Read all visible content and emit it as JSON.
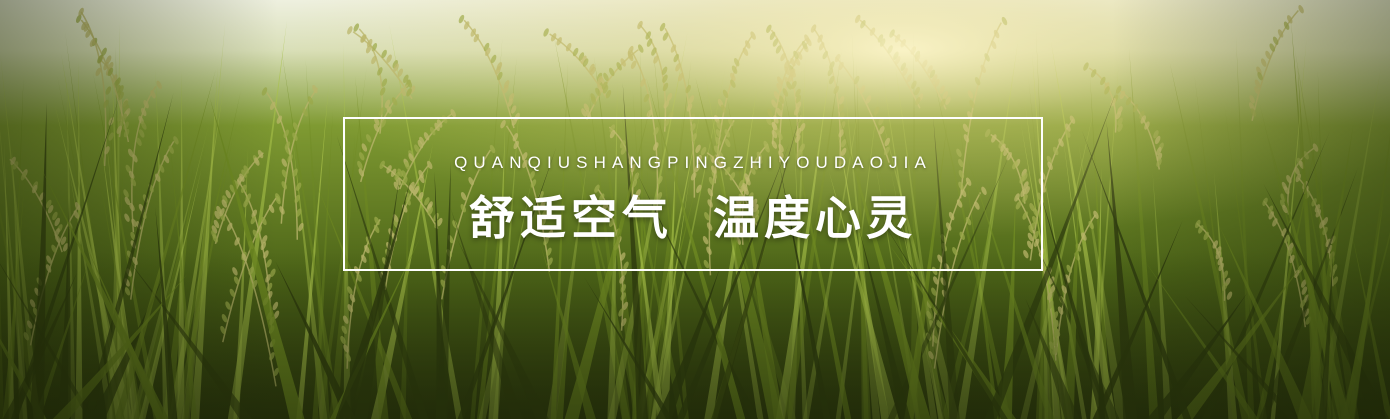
{
  "banner": {
    "pinyin": "QUANQIUSHANGPINGZHIYOUDAOJIA",
    "slogan_left": "舒适空气",
    "slogan_right": "温度心灵"
  },
  "palette": {
    "sky": "#e8ecd8",
    "sun": "#fff6c8",
    "grass_dark": "#2d3a0e",
    "grass_mid": "#6f8a22",
    "grass_light": "#a9c24a",
    "grain": "#b8b46a",
    "text": "#ffffff"
  }
}
